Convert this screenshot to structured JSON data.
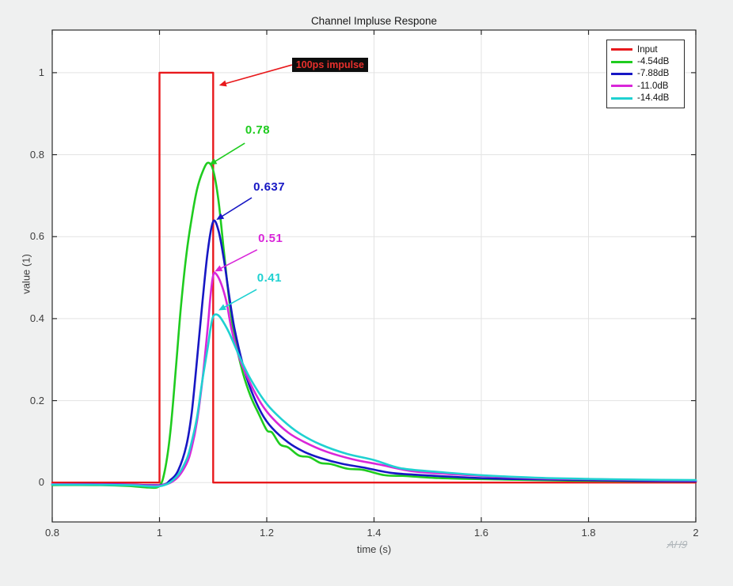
{
  "window": {
    "background": "#eff0f0"
  },
  "watermark": "AH9",
  "chart_data": {
    "type": "line",
    "title": "Channel Impluse Respone",
    "xlabel": "time (s)",
    "ylabel": "value (1)",
    "xlim": [
      0.8,
      2.0
    ],
    "ylim": [
      -0.096,
      1.104
    ],
    "xticks": [
      0.8,
      1,
      1.2,
      1.4,
      1.6,
      1.8,
      2
    ],
    "xtick_labels": [
      "0.8",
      "1",
      "1.2",
      "1.4",
      "1.6",
      "1.8",
      "2"
    ],
    "yticks": [
      0,
      0.2,
      0.4,
      0.6,
      0.8,
      1
    ],
    "ytick_labels": [
      "0",
      "0.2",
      "0.4",
      "0.6",
      "0.8",
      "1"
    ],
    "grid": true,
    "grid_color": "#e3e3e3",
    "axis_color": "#2b2b2b",
    "tick_text_color": "#3d3d3d",
    "plot_bg": "#ffffff",
    "legend_position": "top-right",
    "series": [
      {
        "name": "Input",
        "color": "#e8191c",
        "smooth": false,
        "width": 2.4,
        "points": [
          [
            0.8,
            0
          ],
          [
            1.0,
            0
          ],
          [
            1.0,
            1
          ],
          [
            1.1,
            1
          ],
          [
            1.1,
            0
          ],
          [
            2.0,
            0
          ]
        ]
      },
      {
        "name": "-4.54dB",
        "color": "#1fcc1f",
        "smooth": true,
        "width": 2.6,
        "peak": 0.78,
        "points": [
          [
            0.8,
            -0.006
          ],
          [
            0.88,
            -0.006
          ],
          [
            0.94,
            -0.008
          ],
          [
            0.98,
            -0.012
          ],
          [
            1.0,
            -0.008
          ],
          [
            1.01,
            0.03
          ],
          [
            1.02,
            0.12
          ],
          [
            1.03,
            0.27
          ],
          [
            1.04,
            0.43
          ],
          [
            1.05,
            0.555
          ],
          [
            1.06,
            0.645
          ],
          [
            1.07,
            0.715
          ],
          [
            1.08,
            0.757
          ],
          [
            1.09,
            0.78
          ],
          [
            1.1,
            0.762
          ],
          [
            1.11,
            0.688
          ],
          [
            1.12,
            0.565
          ],
          [
            1.13,
            0.445
          ],
          [
            1.14,
            0.355
          ],
          [
            1.155,
            0.27
          ],
          [
            1.17,
            0.21
          ],
          [
            1.185,
            0.168
          ],
          [
            1.2,
            0.128
          ],
          [
            1.21,
            0.122
          ],
          [
            1.225,
            0.093
          ],
          [
            1.24,
            0.086
          ],
          [
            1.26,
            0.066
          ],
          [
            1.28,
            0.062
          ],
          [
            1.3,
            0.048
          ],
          [
            1.32,
            0.045
          ],
          [
            1.35,
            0.034
          ],
          [
            1.38,
            0.031
          ],
          [
            1.42,
            0.018
          ],
          [
            1.46,
            0.016
          ],
          [
            1.52,
            0.011
          ],
          [
            1.58,
            0.009
          ],
          [
            1.66,
            0.007
          ],
          [
            1.75,
            0.005
          ],
          [
            1.85,
            0.004
          ],
          [
            2.0,
            0.003
          ]
        ]
      },
      {
        "name": "-7.88dB",
        "color": "#1717c4",
        "smooth": true,
        "width": 2.6,
        "peak": 0.637,
        "points": [
          [
            0.8,
            -0.004
          ],
          [
            0.92,
            -0.004
          ],
          [
            1.0,
            -0.006
          ],
          [
            1.02,
            0.006
          ],
          [
            1.035,
            0.03
          ],
          [
            1.05,
            0.09
          ],
          [
            1.06,
            0.17
          ],
          [
            1.07,
            0.3
          ],
          [
            1.08,
            0.44
          ],
          [
            1.09,
            0.565
          ],
          [
            1.1,
            0.637
          ],
          [
            1.11,
            0.615
          ],
          [
            1.12,
            0.545
          ],
          [
            1.13,
            0.455
          ],
          [
            1.14,
            0.375
          ],
          [
            1.155,
            0.29
          ],
          [
            1.17,
            0.228
          ],
          [
            1.19,
            0.17
          ],
          [
            1.21,
            0.133
          ],
          [
            1.24,
            0.098
          ],
          [
            1.27,
            0.075
          ],
          [
            1.3,
            0.06
          ],
          [
            1.34,
            0.046
          ],
          [
            1.38,
            0.037
          ],
          [
            1.43,
            0.024
          ],
          [
            1.48,
            0.019
          ],
          [
            1.55,
            0.014
          ],
          [
            1.62,
            0.01
          ],
          [
            1.7,
            0.008
          ],
          [
            1.8,
            0.006
          ],
          [
            1.9,
            0.004
          ],
          [
            2.0,
            0.003
          ]
        ]
      },
      {
        "name": "-11.0dB",
        "color": "#d926d9",
        "smooth": true,
        "width": 2.6,
        "peak": 0.51,
        "points": [
          [
            0.8,
            -0.004
          ],
          [
            0.94,
            -0.005
          ],
          [
            1.0,
            -0.007
          ],
          [
            1.03,
            0.008
          ],
          [
            1.05,
            0.045
          ],
          [
            1.06,
            0.085
          ],
          [
            1.07,
            0.15
          ],
          [
            1.08,
            0.25
          ],
          [
            1.09,
            0.38
          ],
          [
            1.095,
            0.455
          ],
          [
            1.1,
            0.505
          ],
          [
            1.105,
            0.51
          ],
          [
            1.115,
            0.485
          ],
          [
            1.125,
            0.44
          ],
          [
            1.135,
            0.37
          ],
          [
            1.15,
            0.3
          ],
          [
            1.17,
            0.24
          ],
          [
            1.19,
            0.192
          ],
          [
            1.21,
            0.158
          ],
          [
            1.24,
            0.122
          ],
          [
            1.27,
            0.099
          ],
          [
            1.31,
            0.076
          ],
          [
            1.36,
            0.057
          ],
          [
            1.41,
            0.044
          ],
          [
            1.47,
            0.028
          ],
          [
            1.54,
            0.021
          ],
          [
            1.62,
            0.015
          ],
          [
            1.72,
            0.01
          ],
          [
            1.82,
            0.008
          ],
          [
            1.92,
            0.006
          ],
          [
            2.0,
            0.005
          ]
        ]
      },
      {
        "name": "-14.4dB",
        "color": "#1fd1d1",
        "smooth": true,
        "width": 2.6,
        "peak": 0.41,
        "points": [
          [
            0.8,
            -0.005
          ],
          [
            0.94,
            -0.006
          ],
          [
            1.0,
            -0.009
          ],
          [
            1.03,
            0.012
          ],
          [
            1.05,
            0.055
          ],
          [
            1.06,
            0.1
          ],
          [
            1.07,
            0.16
          ],
          [
            1.08,
            0.25
          ],
          [
            1.09,
            0.33
          ],
          [
            1.095,
            0.375
          ],
          [
            1.1,
            0.405
          ],
          [
            1.107,
            0.41
          ],
          [
            1.115,
            0.4
          ],
          [
            1.13,
            0.365
          ],
          [
            1.15,
            0.305
          ],
          [
            1.17,
            0.252
          ],
          [
            1.2,
            0.192
          ],
          [
            1.23,
            0.152
          ],
          [
            1.26,
            0.121
          ],
          [
            1.3,
            0.093
          ],
          [
            1.35,
            0.07
          ],
          [
            1.4,
            0.055
          ],
          [
            1.45,
            0.035
          ],
          [
            1.52,
            0.026
          ],
          [
            1.6,
            0.018
          ],
          [
            1.7,
            0.012
          ],
          [
            1.8,
            0.009
          ],
          [
            1.9,
            0.007
          ],
          [
            2.0,
            0.006
          ]
        ]
      }
    ],
    "annotations": [
      {
        "id": "impulse",
        "text": "100ps impulse",
        "boxed": true,
        "text_color": "#e8302c",
        "box_color": "#0d0d0d",
        "arrow_color": "#e8191c",
        "tx": 1.247,
        "ty": 1.036,
        "ax0": 1.247,
        "ay0": 1.019,
        "ax1": 1.111,
        "ay1": 0.969
      },
      {
        "id": "peak-green",
        "text": "0.78",
        "boxed": false,
        "text_color": "#1fcc1f",
        "arrow_color": "#1fcc1f",
        "tx": 1.16,
        "ty": 0.876,
        "ax0": 1.159,
        "ay0": 0.828,
        "ax1": 1.093,
        "ay1": 0.775
      },
      {
        "id": "peak-blue",
        "text": "0.637",
        "boxed": false,
        "text_color": "#1717c4",
        "arrow_color": "#1717c4",
        "tx": 1.175,
        "ty": 0.737,
        "ax0": 1.172,
        "ay0": 0.695,
        "ax1": 1.106,
        "ay1": 0.641
      },
      {
        "id": "peak-magenta",
        "text": "0.51",
        "boxed": false,
        "text_color": "#d926d9",
        "arrow_color": "#d926d9",
        "tx": 1.184,
        "ty": 0.612,
        "ax0": 1.182,
        "ay0": 0.568,
        "ax1": 1.103,
        "ay1": 0.515
      },
      {
        "id": "peak-cyan",
        "text": "0.41",
        "boxed": false,
        "text_color": "#1fd1d1",
        "arrow_color": "#1fd1d1",
        "tx": 1.182,
        "ty": 0.516,
        "ax0": 1.181,
        "ay0": 0.471,
        "ax1": 1.11,
        "ay1": 0.42
      }
    ]
  }
}
